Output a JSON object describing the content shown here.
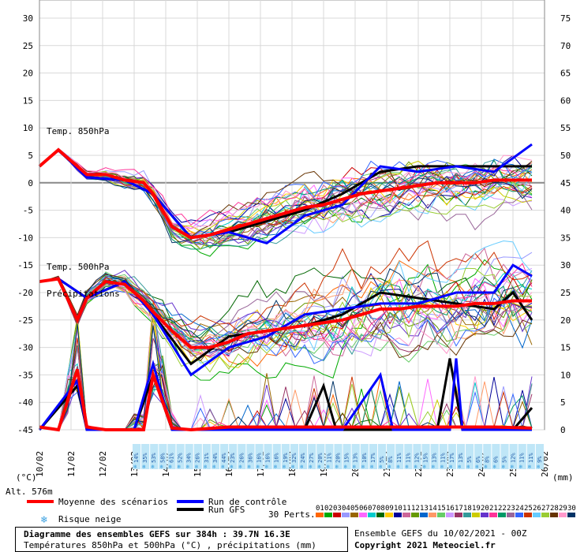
{
  "chart_data": {
    "type": "line",
    "title": "Diagramme des ensembles GEFS sur 384h : 39.7N 16.3E",
    "subtitle": "Températures 850hPa et 500hPa (°C) , précipitations (mm)",
    "run_info": "Ensemble GEFS du 10/02/2021 - 00Z",
    "copyright": "Copyright 2021 Meteociel.fr",
    "left_axis_unit": "(°C)",
    "right_axis_unit": "(mm)",
    "left_ticks": [
      30,
      25,
      20,
      15,
      10,
      5,
      0,
      -5,
      -10,
      -15,
      -20,
      -25,
      -30,
      -35,
      -40,
      -45
    ],
    "right_ticks": [
      75,
      70,
      65,
      60,
      55,
      50,
      45,
      40,
      35,
      30,
      25,
      20,
      15,
      10,
      5,
      0
    ],
    "ylim_left": [
      -45,
      30
    ],
    "ylim_right": [
      0,
      75
    ],
    "dates": [
      "10/02",
      "11/02",
      "12/02",
      "13/02",
      "14/02",
      "15/02",
      "16/02",
      "17/02",
      "18/02",
      "19/02",
      "20/02",
      "21/02",
      "22/02",
      "23/02",
      "24/02",
      "25/02",
      "26/02"
    ],
    "snow_risk": [
      "14%",
      "35%",
      "53%",
      "58%",
      "61%",
      "52%",
      "34%",
      "26%",
      "31%",
      "34%",
      "44%",
      "23%",
      "26%",
      "36%",
      "16%",
      "16%",
      "16%",
      "19%",
      "32%",
      "24%",
      "27%",
      "20%",
      "11%",
      "20%",
      "15%",
      "13%",
      "10%",
      "17%",
      "5%",
      "8%",
      "11%",
      "11%",
      "12%",
      "15%",
      "13%",
      "11%",
      "17%",
      "13%",
      "5%",
      "6%",
      "8%",
      "6%",
      "5%",
      "12%",
      "11%",
      "11%",
      "9%"
    ],
    "alt_label": "Alt. 576m",
    "panel_labels": [
      "Temp. 850hPa",
      "Temp. 500hPa",
      "Précipitations"
    ],
    "series": [
      {
        "name": "Moyenne des scénarios",
        "color": "#ff0000",
        "t850": [
          [
            0,
            3
          ],
          [
            6,
            6
          ],
          [
            15,
            1.5
          ],
          [
            21,
            1.5
          ],
          [
            27,
            0.5
          ],
          [
            33,
            0
          ],
          [
            36,
            -2
          ],
          [
            42,
            -8
          ],
          [
            48,
            -10
          ],
          [
            54,
            -9.5
          ],
          [
            60,
            -8.5
          ],
          [
            66,
            -7.5
          ],
          [
            72,
            -6.5
          ],
          [
            78,
            -5.5
          ],
          [
            84,
            -4.5
          ],
          [
            90,
            -4
          ],
          [
            96,
            -3
          ],
          [
            102,
            -2
          ],
          [
            108,
            -1.5
          ],
          [
            114,
            -1
          ],
          [
            120,
            -0.5
          ],
          [
            126,
            0
          ],
          [
            132,
            0
          ],
          [
            138,
            0
          ],
          [
            144,
            0.5
          ],
          [
            150,
            0.5
          ],
          [
            156,
            0.5
          ]
        ],
        "t500": [
          [
            0,
            -18
          ],
          [
            6,
            -17.5
          ],
          [
            12,
            -25
          ],
          [
            15,
            -21
          ],
          [
            21,
            -18
          ],
          [
            27,
            -18.5
          ],
          [
            33,
            -21.5
          ],
          [
            36,
            -23.5
          ],
          [
            42,
            -27
          ],
          [
            48,
            -30
          ],
          [
            54,
            -30
          ],
          [
            60,
            -29
          ],
          [
            66,
            -27.5
          ],
          [
            72,
            -27
          ],
          [
            78,
            -26.5
          ],
          [
            84,
            -26
          ],
          [
            90,
            -25.5
          ],
          [
            96,
            -25
          ],
          [
            102,
            -24
          ],
          [
            108,
            -23
          ],
          [
            114,
            -23
          ],
          [
            120,
            -22.5
          ],
          [
            126,
            -22.5
          ],
          [
            132,
            -22.5
          ],
          [
            138,
            -22
          ],
          [
            144,
            -22
          ],
          [
            150,
            -21.5
          ],
          [
            156,
            -21.5
          ]
        ],
        "precip": [
          [
            0,
            0.5
          ],
          [
            6,
            0
          ],
          [
            12,
            11
          ],
          [
            15,
            0.5
          ],
          [
            21,
            0
          ],
          [
            30,
            0
          ],
          [
            33,
            0
          ],
          [
            36,
            10
          ],
          [
            42,
            0.3
          ],
          [
            48,
            0
          ],
          [
            60,
            0.5
          ],
          [
            72,
            0.5
          ],
          [
            84,
            0.5
          ],
          [
            96,
            0.5
          ],
          [
            108,
            0.5
          ],
          [
            120,
            0.5
          ],
          [
            132,
            0.5
          ],
          [
            144,
            0.5
          ],
          [
            156,
            0.3
          ]
        ]
      },
      {
        "name": "Run de contrôle",
        "color": "#0000ff",
        "t850": [
          [
            0,
            3
          ],
          [
            6,
            6
          ],
          [
            15,
            1
          ],
          [
            27,
            0.5
          ],
          [
            36,
            -2
          ],
          [
            48,
            -10
          ],
          [
            60,
            -9
          ],
          [
            72,
            -11
          ],
          [
            84,
            -6
          ],
          [
            96,
            -4
          ],
          [
            108,
            3
          ],
          [
            120,
            2
          ],
          [
            132,
            3
          ],
          [
            144,
            2
          ],
          [
            156,
            7
          ]
        ],
        "t500": [
          [
            0,
            -18
          ],
          [
            6,
            -17.5
          ],
          [
            15,
            -21
          ],
          [
            27,
            -18
          ],
          [
            36,
            -24
          ],
          [
            48,
            -35
          ],
          [
            60,
            -30
          ],
          [
            72,
            -28
          ],
          [
            84,
            -24
          ],
          [
            96,
            -23
          ],
          [
            108,
            -22
          ],
          [
            120,
            -22
          ],
          [
            132,
            -20
          ],
          [
            144,
            -20
          ],
          [
            150,
            -15
          ],
          [
            156,
            -17
          ]
        ],
        "precip": [
          [
            0,
            0
          ],
          [
            12,
            9
          ],
          [
            15,
            0
          ],
          [
            30,
            0
          ],
          [
            36,
            12
          ],
          [
            42,
            0
          ],
          [
            96,
            0
          ],
          [
            108,
            10
          ],
          [
            112,
            0
          ],
          [
            130,
            0
          ],
          [
            132,
            13
          ],
          [
            134,
            0
          ],
          [
            156,
            0
          ]
        ]
      },
      {
        "name": "Run GFS",
        "color": "#000000",
        "t850": [
          [
            0,
            3
          ],
          [
            6,
            6
          ],
          [
            15,
            1
          ],
          [
            27,
            0.5
          ],
          [
            36,
            -2
          ],
          [
            48,
            -10
          ],
          [
            60,
            -9
          ],
          [
            72,
            -7
          ],
          [
            84,
            -5
          ],
          [
            96,
            -2
          ],
          [
            108,
            2
          ],
          [
            120,
            3
          ],
          [
            132,
            3
          ],
          [
            144,
            3
          ],
          [
            156,
            3
          ]
        ],
        "t500": [
          [
            0,
            -18
          ],
          [
            6,
            -17.5
          ],
          [
            15,
            -21
          ],
          [
            27,
            -18
          ],
          [
            36,
            -24
          ],
          [
            48,
            -33
          ],
          [
            60,
            -28
          ],
          [
            72,
            -27
          ],
          [
            84,
            -26
          ],
          [
            96,
            -24
          ],
          [
            108,
            -20
          ],
          [
            120,
            -21
          ],
          [
            132,
            -22
          ],
          [
            144,
            -23
          ],
          [
            150,
            -20
          ],
          [
            156,
            -25
          ]
        ],
        "precip": [
          [
            0,
            0
          ],
          [
            12,
            8
          ],
          [
            15,
            0
          ],
          [
            30,
            0
          ],
          [
            36,
            10
          ],
          [
            42,
            0
          ],
          [
            84,
            0
          ],
          [
            90,
            8
          ],
          [
            94,
            0
          ],
          [
            126,
            0
          ],
          [
            130,
            13
          ],
          [
            134,
            0
          ],
          [
            150,
            0
          ],
          [
            156,
            4
          ]
        ]
      }
    ]
  },
  "legend": {
    "mean_label": "Moyenne des scénarios",
    "control_label": "Run de contrôle",
    "gfs_label": "Run GFS",
    "snow_label": "Risque neige",
    "perts_label": "30 Perts.",
    "pert_numbers": [
      "01",
      "02",
      "03",
      "04",
      "05",
      "06",
      "07",
      "08",
      "09",
      "10",
      "11",
      "12",
      "13",
      "14",
      "15",
      "16",
      "17",
      "18",
      "19",
      "20",
      "21",
      "22",
      "23",
      "24",
      "25",
      "26",
      "27",
      "28",
      "29",
      "30"
    ],
    "pert_colors": [
      "#ff6600",
      "#00aa00",
      "#cc0000",
      "#9999ff",
      "#996600",
      "#ff66ff",
      "#00cccc",
      "#006600",
      "#ffcc00",
      "#000099",
      "#cc6699",
      "#669900",
      "#0066cc",
      "#ff9966",
      "#66cc66",
      "#cc99ff",
      "#993366",
      "#339999",
      "#cccc00",
      "#6633cc",
      "#ff3399",
      "#009966",
      "#996699",
      "#3366ff",
      "#cc3300",
      "#66ccff",
      "#99cc33",
      "#663300",
      "#ff99cc",
      "#003366"
    ],
    "snow_icon": "snowflake-icon"
  }
}
